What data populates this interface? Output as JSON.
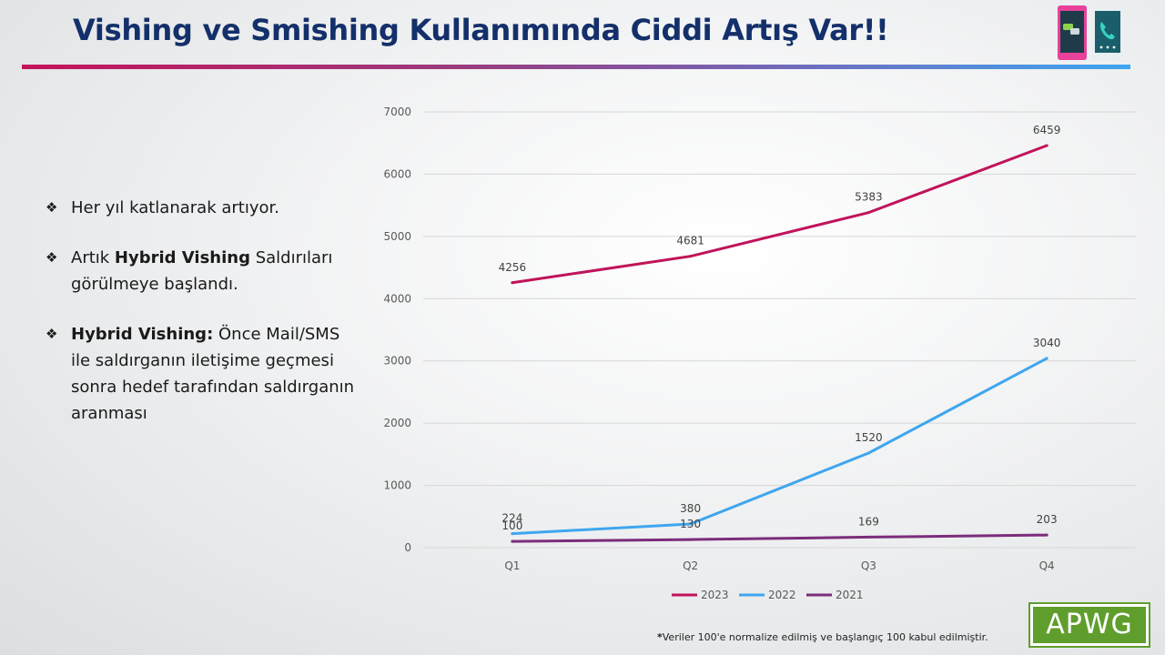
{
  "page": {
    "title": "Vishing ve Smishing Kullanımında Ciddi Artış Var!!",
    "bullets": [
      {
        "pre": "Her yıl katlanarak artıyor.",
        "bold": "",
        "post": ""
      },
      {
        "pre": "Artık ",
        "bold": "Hybrid Vishing",
        "post": " Saldırıları görülmeye başlandı."
      },
      {
        "pre": "",
        "bold": "Hybrid Vishing:",
        "post": " Önce Mail/SMS ile saldırganın iletişime geçmesi sonra hedef tarafından saldırganın aranması"
      }
    ],
    "bullet_symbol": "❖",
    "footnote_mark": "*",
    "footnote_text": "Veriler 100'e normalize edilmiş ve başlangıç 100 kabul edilmiştir.",
    "logo_text": "APWG",
    "icon": "sms-and-phone-call-icon"
  },
  "chart_data": {
    "type": "line",
    "title": "",
    "xlabel": "",
    "ylabel": "",
    "categories": [
      "Q1",
      "Q2",
      "Q3",
      "Q4"
    ],
    "ylim": [
      0,
      7000
    ],
    "yticks": [
      0,
      1000,
      2000,
      3000,
      4000,
      5000,
      6000,
      7000
    ],
    "grid": true,
    "legend_position": "bottom",
    "series": [
      {
        "name": "2023",
        "color": "#c0135a",
        "values": [
          4256,
          4681,
          5383,
          6459
        ]
      },
      {
        "name": "2022",
        "color": "#3fa6ee",
        "values": [
          224,
          380,
          1520,
          3040
        ]
      },
      {
        "name": "2021",
        "color": "#7b2d7a",
        "values": [
          100,
          130,
          169,
          203
        ]
      }
    ]
  }
}
